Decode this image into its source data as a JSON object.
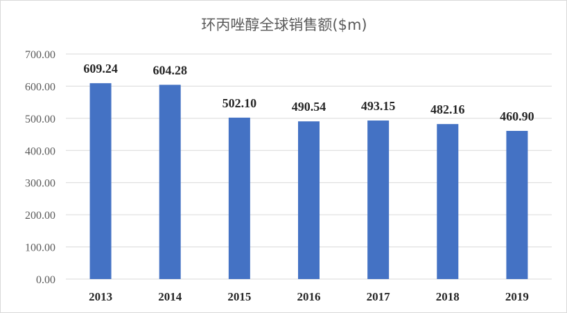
{
  "chart_data": {
    "type": "bar",
    "title": "环丙唑醇全球销售额($m)",
    "categories": [
      "2013",
      "2014",
      "2015",
      "2016",
      "2017",
      "2018",
      "2019"
    ],
    "series": [
      {
        "values": [
          609.24,
          604.28,
          502.1,
          490.54,
          493.15,
          482.16,
          460.9
        ],
        "value_labels": [
          "609.24",
          "604.28",
          "502.10",
          "490.54",
          "493.15",
          "482.16",
          "460.90"
        ],
        "color": "#4472c4"
      }
    ],
    "ylim": [
      0,
      700
    ],
    "yticks": [
      0,
      100,
      200,
      300,
      400,
      500,
      600,
      700
    ],
    "ytick_labels": [
      "0.00",
      "100.00",
      "200.00",
      "300.00",
      "400.00",
      "500.00",
      "600.00",
      "700.00"
    ],
    "xlabel": "",
    "ylabel": "",
    "grid": true,
    "legend": "none",
    "gridline_color": "#d9d9d9"
  }
}
